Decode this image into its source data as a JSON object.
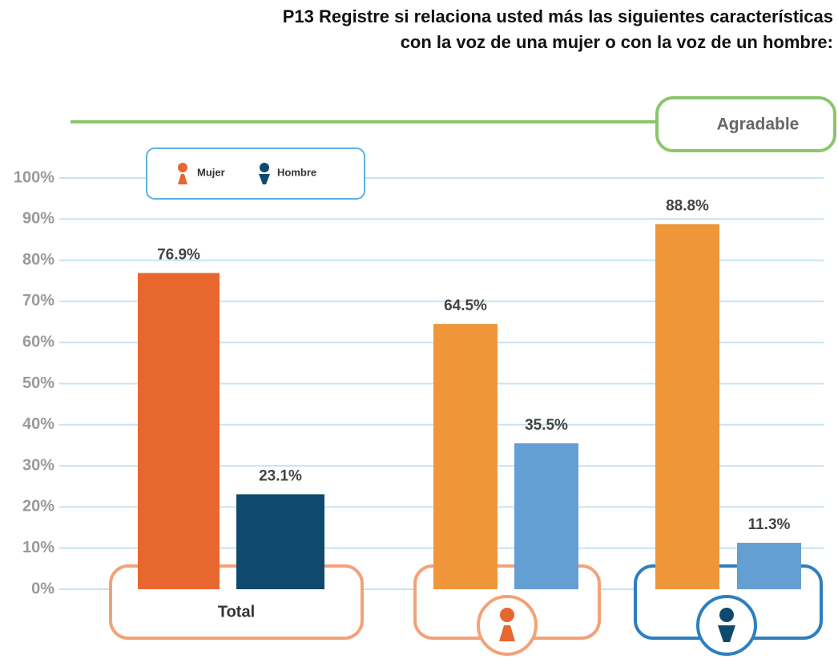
{
  "chart_data": {
    "type": "bar",
    "title": [
      "P13 Registre si relaciona usted más las siguientes características",
      "con la voz de una mujer o con la voz de un hombre:"
    ],
    "annotation": "Agradable",
    "categories": [
      "Total",
      null,
      null
    ],
    "series": [
      {
        "name": "Mujer",
        "color": "#e8672f",
        "colors": [
          "#e8672f",
          "#f0963a",
          "#f0963a"
        ],
        "values": [
          76.9,
          64.5,
          88.8
        ],
        "value_labels": [
          "76.9%",
          "64.5%",
          "88.8%"
        ]
      },
      {
        "name": "Hombre",
        "color": "#0f4a6e",
        "colors": [
          "#0f4a6e",
          "#649fd3",
          "#649fd3"
        ],
        "values": [
          23.1,
          35.5,
          11.3
        ],
        "value_labels": [
          "23.1%",
          "35.5%",
          "11.3%"
        ]
      }
    ],
    "ylim": [
      0,
      100
    ],
    "yticks": [
      {
        "value": 0,
        "label": "0%"
      },
      {
        "value": 10,
        "label": "10%"
      },
      {
        "value": 20,
        "label": "20%"
      },
      {
        "value": 30,
        "label": "30%"
      },
      {
        "value": 40,
        "label": "40%"
      },
      {
        "value": 50,
        "label": "50%"
      },
      {
        "value": 60,
        "label": "60%"
      },
      {
        "value": 70,
        "label": "70%"
      },
      {
        "value": 80,
        "label": "80%"
      },
      {
        "value": 90,
        "label": "90%"
      },
      {
        "value": 100,
        "label": "100%"
      }
    ],
    "grid": true
  }
}
